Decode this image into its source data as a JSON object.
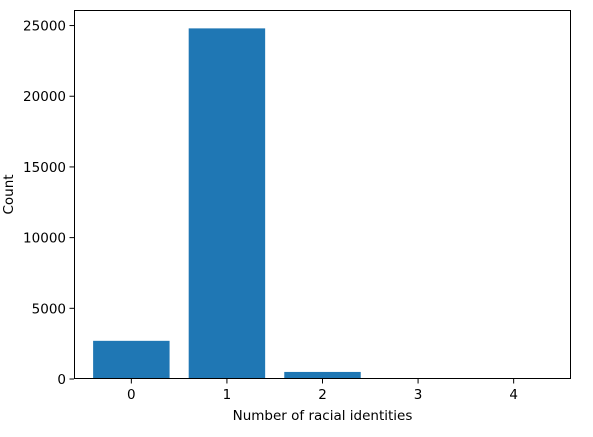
{
  "chart_data": {
    "type": "bar",
    "title": "",
    "xlabel": "Number of racial identities",
    "ylabel": "Count",
    "categories": [
      "0",
      "1",
      "2",
      "3",
      "4"
    ],
    "values": [
      2700,
      24800,
      500,
      60,
      10
    ],
    "ylim": [
      0,
      26100
    ],
    "yticks": [
      0,
      5000,
      10000,
      15000,
      20000,
      25000
    ],
    "grid": false,
    "legend": "none",
    "bar_color": "#1f77b4"
  }
}
